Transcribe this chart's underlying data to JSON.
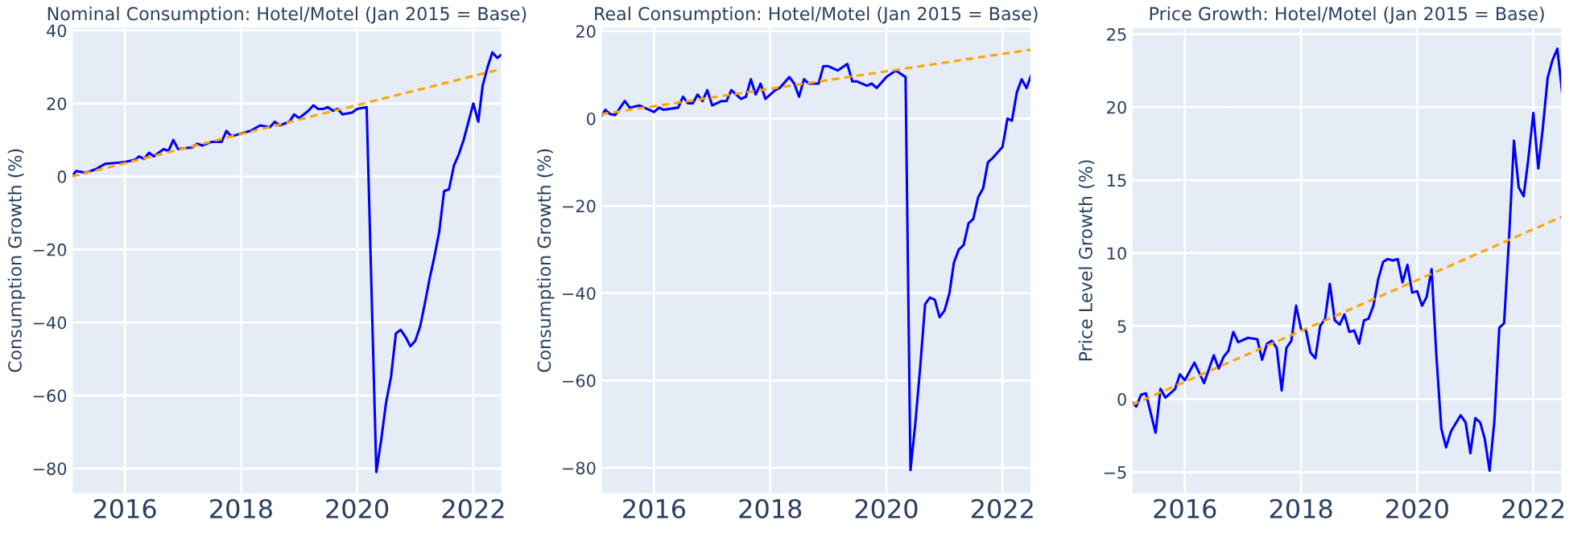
{
  "chart_data": [
    {
      "type": "line",
      "title": "Nominal Consumption: Hotel/Motel (Jan 2015 = Base)",
      "ylabel": "Consumption Growth (%)",
      "xlim": [
        "2015-02",
        "2022-07"
      ],
      "xticks": [
        {
          "value": "2016-01",
          "label": "2016"
        },
        {
          "value": "2018-01",
          "label": "2018"
        },
        {
          "value": "2020-01",
          "label": "2020"
        },
        {
          "value": "2022-01",
          "label": "2022"
        }
      ],
      "ylim": [
        -87,
        41
      ],
      "yticks": [
        -80,
        -60,
        -40,
        -20,
        0,
        20,
        40
      ],
      "grid": true,
      "line_style": "solid",
      "series": [
        {
          "color": "#0000ff",
          "x": [
            "2015-02",
            "2015-03",
            "2015-05",
            "2015-07",
            "2015-09",
            "2015-12",
            "2016-01",
            "2016-03",
            "2016-04",
            "2016-05",
            "2016-06",
            "2016-07",
            "2016-09",
            "2016-10",
            "2016-11",
            "2016-12",
            "2017-03",
            "2017-04",
            "2017-05",
            "2017-07",
            "2017-09",
            "2017-10",
            "2017-11",
            "2018-03",
            "2018-05",
            "2018-07",
            "2018-08",
            "2018-09",
            "2018-11",
            "2018-12",
            "2019-01",
            "2019-03",
            "2019-04",
            "2019-05",
            "2019-06",
            "2019-07",
            "2019-08",
            "2019-09",
            "2019-10",
            "2019-12",
            "2020-01",
            "2020-03",
            "2020-05",
            "2020-06",
            "2020-07",
            "2020-08",
            "2020-09",
            "2020-10",
            "2020-11",
            "2020-12",
            "2021-01",
            "2021-02",
            "2021-03",
            "2021-04",
            "2021-05",
            "2021-06",
            "2021-07",
            "2021-08",
            "2021-09",
            "2021-10",
            "2021-11",
            "2022-01",
            "2022-02",
            "2022-03",
            "2022-04",
            "2022-05",
            "2022-06",
            "2022-07"
          ],
          "values": [
            0,
            1.5,
            1,
            2,
            3.5,
            3.8,
            4,
            4.5,
            5.5,
            4.8,
            6.5,
            5.5,
            7.5,
            7,
            10,
            7.5,
            8,
            9,
            8.5,
            9.5,
            9.5,
            12.5,
            11,
            12.5,
            14,
            13.5,
            15,
            14,
            15,
            17,
            16,
            18,
            19.5,
            18.5,
            18.5,
            19,
            18,
            18.5,
            17,
            17.5,
            18.5,
            19,
            -81,
            -72,
            -62,
            -55,
            -43,
            -42,
            -44,
            -46.5,
            -45,
            -41,
            -35,
            -28,
            -22,
            -15,
            -4,
            -3.5,
            3,
            6,
            10,
            20,
            15,
            25,
            30,
            34,
            32.5,
            33.5
          ]
        },
        {
          "color": "#ffa500",
          "line_style": "dashed",
          "x": [
            "2015-02",
            "2022-07"
          ],
          "values": [
            0,
            29.5
          ]
        }
      ]
    },
    {
      "type": "line",
      "title": "Real Consumption: Hotel/Motel (Jan 2015 = Base)",
      "ylabel": "Consumption Growth (%)",
      "xlim": [
        "2015-02",
        "2022-07"
      ],
      "xticks": [
        {
          "value": "2016-01",
          "label": "2016"
        },
        {
          "value": "2018-01",
          "label": "2018"
        },
        {
          "value": "2020-01",
          "label": "2020"
        },
        {
          "value": "2022-01",
          "label": "2022"
        }
      ],
      "ylim": [
        -86,
        21
      ],
      "yticks": [
        -80,
        -60,
        -40,
        -20,
        0,
        20
      ],
      "grid": true,
      "line_style": "solid",
      "series": [
        {
          "color": "#0000ff",
          "x": [
            "2015-02",
            "2015-03",
            "2015-04",
            "2015-05",
            "2015-07",
            "2015-08",
            "2015-10",
            "2015-11",
            "2016-01",
            "2016-02",
            "2016-03",
            "2016-06",
            "2016-07",
            "2016-08",
            "2016-09",
            "2016-10",
            "2016-11",
            "2016-12",
            "2017-01",
            "2017-03",
            "2017-04",
            "2017-05",
            "2017-07",
            "2017-08",
            "2017-09",
            "2017-10",
            "2017-11",
            "2017-12",
            "2018-02",
            "2018-03",
            "2018-05",
            "2018-06",
            "2018-07",
            "2018-08",
            "2018-09",
            "2018-11",
            "2018-12",
            "2019-01",
            "2019-03",
            "2019-05",
            "2019-06",
            "2019-07",
            "2019-09",
            "2019-10",
            "2019-11",
            "2020-01",
            "2020-03",
            "2020-05",
            "2020-06",
            "2020-07",
            "2020-08",
            "2020-09",
            "2020-10",
            "2020-11",
            "2020-12",
            "2021-01",
            "2021-02",
            "2021-03",
            "2021-04",
            "2021-05",
            "2021-06",
            "2021-07",
            "2021-08",
            "2021-09",
            "2021-10",
            "2021-11",
            "2022-01",
            "2022-02",
            "2022-03",
            "2022-04",
            "2022-05",
            "2022-06",
            "2022-07"
          ],
          "values": [
            0.5,
            2,
            1,
            0.8,
            4,
            2.5,
            3,
            2.5,
            1.5,
            2.5,
            2,
            2.5,
            5,
            3.5,
            3.5,
            5.5,
            4,
            6.5,
            3,
            4,
            4,
            6.5,
            4.5,
            5,
            9,
            5.5,
            8,
            4.5,
            6.5,
            7,
            9.5,
            8,
            5,
            9,
            8,
            8,
            12,
            12,
            11,
            12.5,
            8.5,
            8.5,
            7.5,
            8,
            7,
            9.5,
            11,
            9.5,
            -80.5,
            -70,
            -57,
            -42.5,
            -41,
            -41.5,
            -45.5,
            -44,
            -40,
            -33,
            -30,
            -29,
            -24,
            -23,
            -18,
            -16,
            -10,
            -9,
            -6.5,
            0,
            -0.5,
            6,
            9,
            7,
            10
          ]
        },
        {
          "color": "#ffa500",
          "line_style": "dashed",
          "x": [
            "2015-02",
            "2022-07"
          ],
          "values": [
            1,
            15.8
          ]
        }
      ]
    },
    {
      "type": "line",
      "title": "Price Growth: Hotel/Motel (Jan 2015 = Base)",
      "ylabel": "Price Level Growth (%)",
      "xlim": [
        "2015-02",
        "2022-07"
      ],
      "xticks": [
        {
          "value": "2016-01",
          "label": "2016"
        },
        {
          "value": "2018-01",
          "label": "2018"
        },
        {
          "value": "2020-01",
          "label": "2020"
        },
        {
          "value": "2022-01",
          "label": "2022"
        }
      ],
      "ylim": [
        -6.5,
        25.5
      ],
      "yticks": [
        -5,
        0,
        5,
        10,
        15,
        20,
        25
      ],
      "grid": true,
      "line_style": "solid",
      "series": [
        {
          "color": "#0000ff",
          "x": [
            "2015-02",
            "2015-03",
            "2015-04",
            "2015-05",
            "2015-07",
            "2015-08",
            "2015-09",
            "2015-11",
            "2015-12",
            "2016-01",
            "2016-03",
            "2016-05",
            "2016-07",
            "2016-08",
            "2016-09",
            "2016-10",
            "2016-11",
            "2016-12",
            "2017-02",
            "2017-04",
            "2017-05",
            "2017-06",
            "2017-07",
            "2017-08",
            "2017-09",
            "2017-10",
            "2017-11",
            "2017-12",
            "2018-01",
            "2018-02",
            "2018-03",
            "2018-04",
            "2018-05",
            "2018-06",
            "2018-07",
            "2018-08",
            "2018-09",
            "2018-10",
            "2018-11",
            "2018-12",
            "2019-01",
            "2019-02",
            "2019-03",
            "2019-04",
            "2019-05",
            "2019-06",
            "2019-07",
            "2019-08",
            "2019-09",
            "2019-10",
            "2019-11",
            "2019-12",
            "2020-01",
            "2020-02",
            "2020-03",
            "2020-04",
            "2020-05",
            "2020-06",
            "2020-07",
            "2020-08",
            "2020-10",
            "2020-11",
            "2020-12",
            "2021-01",
            "2021-02",
            "2021-03",
            "2021-04",
            "2021-05",
            "2021-06",
            "2021-07",
            "2021-08",
            "2021-09",
            "2021-10",
            "2021-11",
            "2021-12",
            "2022-01",
            "2022-02",
            "2022-03",
            "2022-04",
            "2022-05",
            "2022-06",
            "2022-07"
          ],
          "values": [
            -0.2,
            -0.5,
            0.3,
            0.4,
            -2.3,
            0.7,
            0.1,
            0.7,
            1.7,
            1.3,
            2.5,
            1.1,
            3,
            2.1,
            2.9,
            3.3,
            4.6,
            3.9,
            4.2,
            4.1,
            2.7,
            3.8,
            4,
            3.5,
            0.6,
            3.5,
            4,
            6.4,
            4.8,
            4.7,
            3.2,
            2.8,
            5,
            5.5,
            7.9,
            5.4,
            5.1,
            5.8,
            4.6,
            4.7,
            3.8,
            5.4,
            5.5,
            6.4,
            8.2,
            9.4,
            9.6,
            9.5,
            9.6,
            8,
            9.2,
            7.3,
            7.4,
            6.4,
            7,
            8.9,
            3,
            -2,
            -3.3,
            -2.2,
            -1.1,
            -1.6,
            -3.7,
            -1.3,
            -1.6,
            -2.7,
            -4.9,
            -1.5,
            4.9,
            5.2,
            11,
            17.7,
            14.5,
            13.9,
            16.5,
            19.6,
            15.8,
            18.5,
            22,
            23.2,
            24,
            21
          ]
        },
        {
          "color": "#ffa500",
          "line_style": "dashed",
          "x": [
            "2015-02",
            "2022-07"
          ],
          "values": [
            -0.4,
            12.5
          ]
        }
      ]
    }
  ]
}
